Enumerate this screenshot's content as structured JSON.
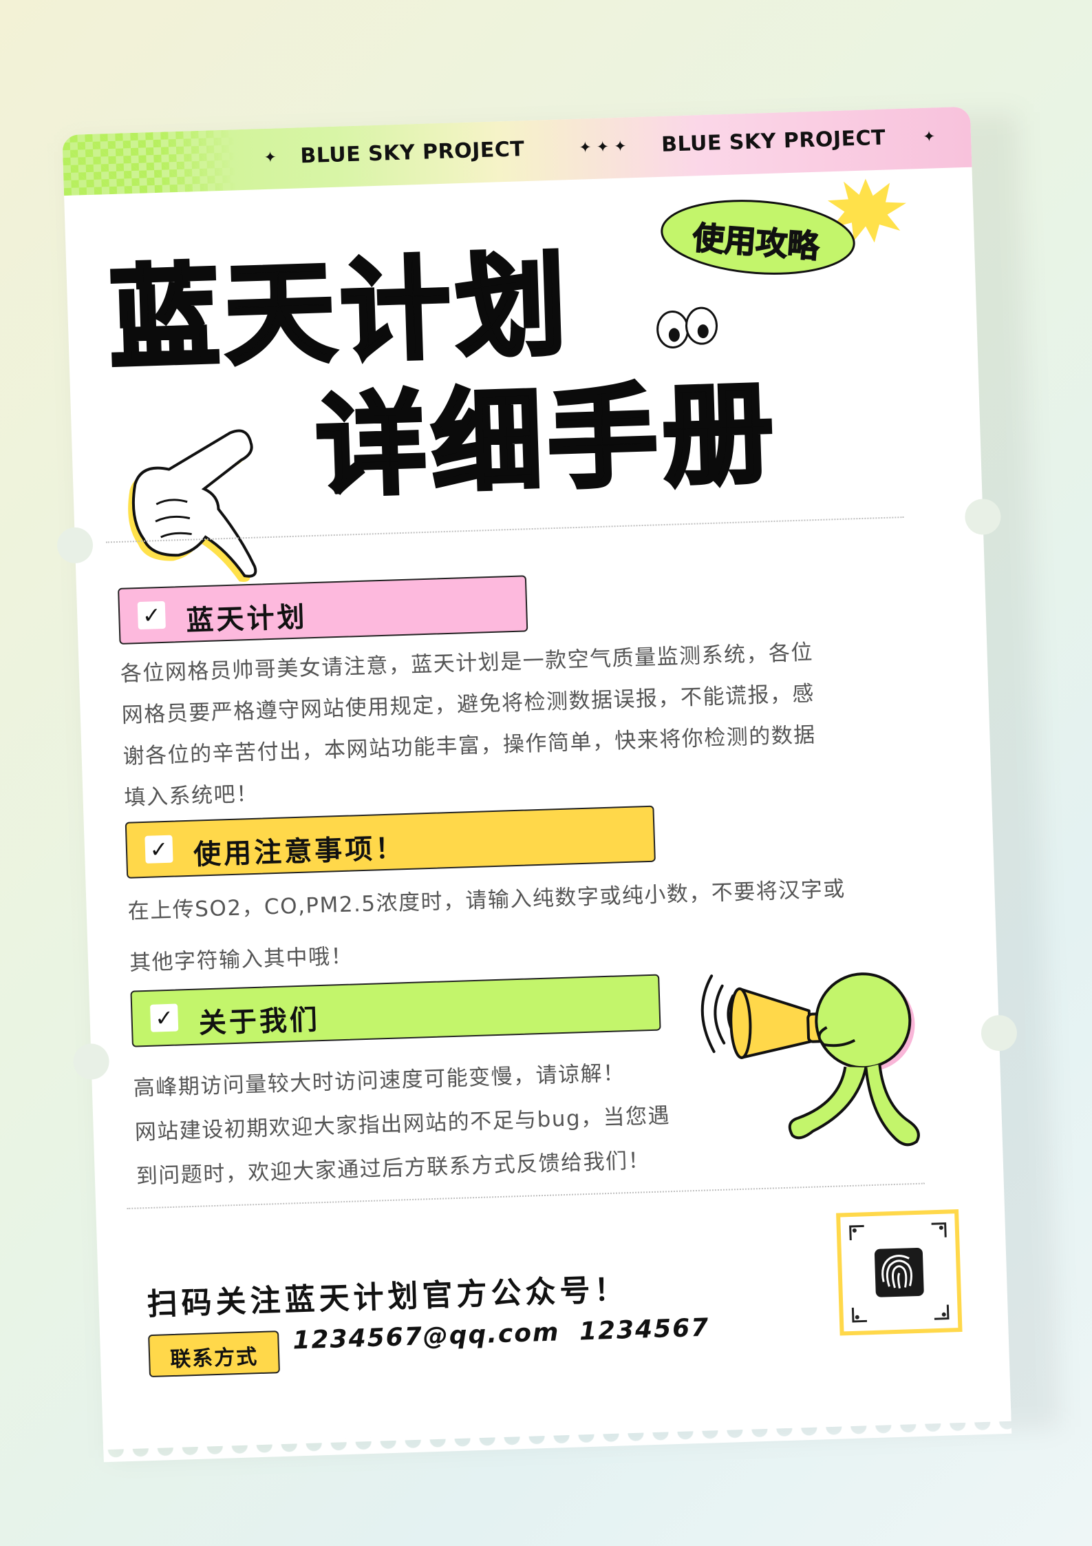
{
  "header": {
    "band_left": "BLUE SKY PROJECT",
    "band_right": "BLUE SKY PROJECT"
  },
  "title": {
    "line1": "蓝天计划",
    "line2": "详细手册",
    "badge": "使用攻略"
  },
  "sections": [
    {
      "label": "蓝天计划",
      "color": "#fdb9dd",
      "lines": [
        "各位网格员帅哥美女请注意，蓝天计划是一款空气质量监测系统，各位",
        "网格员要严格遵守网站使用规定，避免将检测数据误报，不能谎报，感",
        "谢各位的辛苦付出，本网站功能丰富，操作简单，快来将你检测的数据",
        "填入系统吧！"
      ]
    },
    {
      "label": "使用注意事项！",
      "color": "#ffd84a",
      "lines": [
        "在上传SO2，CO,PM2.5浓度时，请输入纯数字或纯小数，不要将汉字或",
        "其他字符输入其中哦！"
      ]
    },
    {
      "label": "关于我们",
      "color": "#c3f56b",
      "lines": [
        "高峰期访问量较大时访问速度可能变慢，请谅解！",
        "网站建设初期欢迎大家指出网站的不足与bug，当您遇",
        "到问题时，欢迎大家通过后方联系方式反馈给我们！"
      ]
    }
  ],
  "footer": {
    "qr_text": "扫码关注蓝天计划官方公众号！",
    "contact_label": "联系方式",
    "contact_info": "1234567@qq.com 1234567"
  },
  "icons": [
    "sparkle-icon",
    "check-icon",
    "pointing-hand-icon",
    "eyes-icon",
    "starburst-icon",
    "megaphone-mascot-icon",
    "fingerprint-icon"
  ],
  "colors": {
    "pink": "#fdb9dd",
    "yellow": "#ffd84a",
    "green": "#c3f56b",
    "text_dark": "#111111",
    "text_body": "#555555"
  }
}
